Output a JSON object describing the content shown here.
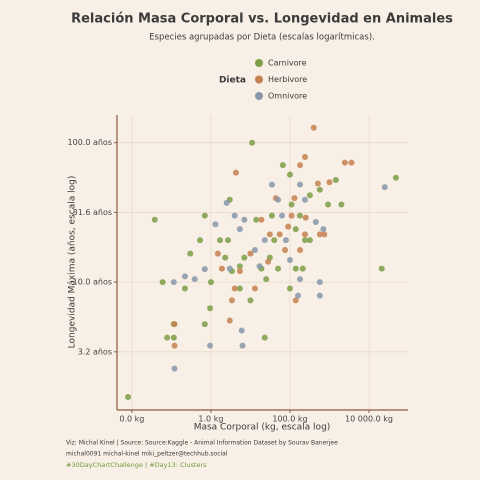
{
  "chart_data": {
    "type": "scatter",
    "title": "Relación Masa Corporal vs. Longevidad en Animales",
    "subtitle": "Especies agrupadas por Dieta (escalas logarítmicas).",
    "legend_title": "Dieta",
    "xlabel": "Masa Corporal (kg, escala log)",
    "ylabel": "Longevidad Máxima (años, escala log)",
    "xscale": "log",
    "yscale": "log",
    "grid": true,
    "legend": "top",
    "xlim": [
      0.0042,
      97000
    ],
    "ylim": [
      1.21,
      158
    ],
    "xticks": [
      {
        "value": 0.01,
        "label": "0.0 kg"
      },
      {
        "value": 1,
        "label": "1.0 kg"
      },
      {
        "value": 100,
        "label": "100.0 kg"
      },
      {
        "value": 10000,
        "label": "10 000.0 kg"
      }
    ],
    "yticks": [
      {
        "value": 3.162,
        "label": "3.2 años"
      },
      {
        "value": 10,
        "label": "10.0 años"
      },
      {
        "value": 31.62,
        "label": "31.6 años"
      },
      {
        "value": 100,
        "label": "100.0 años"
      }
    ],
    "series": [
      {
        "name": "Carnivore",
        "color": "#7d9e45",
        "x": [
          0.008,
          0.038,
          0.06,
          0.115,
          0.078,
          0.115,
          0.22,
          0.3,
          0.53,
          0.7,
          0.95,
          0.7,
          1,
          1.7,
          2.3,
          2.7,
          3.4,
          5.4,
          7,
          11,
          14,
          19,
          25,
          31,
          40,
          50,
          66,
          100,
          110,
          140,
          178,
          240,
          320,
          570,
          920,
          1450,
          2000,
          100,
          140,
          210,
          320,
          10,
          23,
          5.4,
          48000,
          21000,
          3,
          35
        ],
        "values": [
          1.5,
          28,
          10,
          5,
          4,
          4,
          9,
          16,
          20,
          30,
          6.5,
          5,
          10,
          20,
          15,
          20,
          12,
          13,
          15,
          100,
          28,
          12.5,
          10.5,
          15,
          20,
          12.5,
          69,
          59,
          36,
          24,
          30,
          20,
          42,
          46,
          36,
          54,
          36,
          9,
          12.5,
          12.5,
          20,
          7.4,
          4,
          9,
          56,
          12.5,
          39,
          30
        ]
      },
      {
        "name": "Herbivore",
        "color": "#c5804f",
        "x": [
          400,
          4.3,
          240,
          2450,
          3600,
          180,
          510,
          1000,
          130,
          110,
          250,
          570,
          740,
          240,
          180,
          55,
          75,
          31,
          19,
          10,
          5.4,
          4,
          3.4,
          3,
          1.9,
          1.5,
          0.12,
          0.12,
          13,
          28,
          44,
          90,
          140
        ],
        "values": [
          128,
          61,
          79,
          72,
          72,
          69,
          51,
          52,
          40,
          30,
          29,
          22,
          22,
          22,
          17,
          22,
          17,
          22,
          28,
          16,
          12,
          9,
          7.4,
          5.3,
          12.5,
          16,
          3.5,
          5,
          9,
          14,
          40,
          25,
          7.4
        ]
      },
      {
        "name": "Omnivore",
        "color": "#8797a9",
        "x": [
          0.115,
          0.22,
          0.39,
          0.7,
          0.95,
          2.5,
          4,
          5.4,
          7,
          6,
          6.3,
          13,
          17,
          23,
          35,
          50,
          63,
          79,
          100,
          180,
          240,
          450,
          700,
          180,
          160,
          570,
          570,
          25000,
          3,
          1.3,
          0.12
        ],
        "values": [
          10,
          11,
          10.5,
          12.4,
          3.5,
          37,
          30,
          24,
          28,
          4.5,
          3.5,
          17,
          13,
          20,
          50,
          39,
          30,
          20,
          14.4,
          50,
          39,
          27,
          24,
          10.5,
          8,
          8,
          10,
          48,
          12.5,
          26,
          2.4
        ]
      }
    ],
    "caption": [
      "Viz: Michal Kinel  |  Source: Source:Kaggle - Animal Information Dataset by Sourav Banerjee",
      "michal0091  michal-kinel  miki_peltzer@techhub.social"
    ],
    "hashtags": "#30DayChartChallenge | #Day13: Clusters"
  }
}
